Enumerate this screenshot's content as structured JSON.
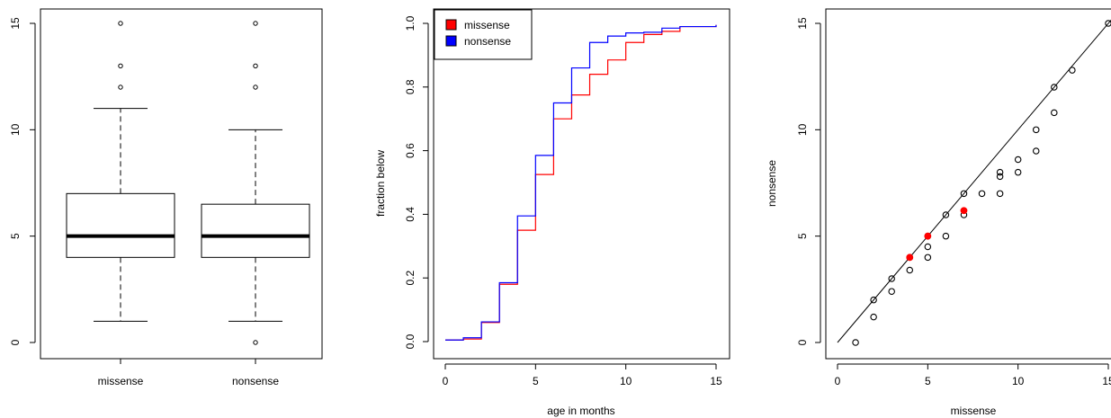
{
  "chart_data": [
    {
      "type": "box",
      "categories": [
        "missense",
        "nonsense"
      ],
      "ylim": [
        0,
        15
      ],
      "yticks": [
        "0",
        "5",
        "10",
        "15"
      ],
      "boxes": [
        {
          "name": "missense",
          "whisker_low": 1,
          "q1": 4,
          "median": 5,
          "q3": 7,
          "whisker_high": 11,
          "outliers": [
            12,
            13,
            15
          ]
        },
        {
          "name": "nonsense",
          "whisker_low": 1,
          "q1": 4,
          "median": 5,
          "q3": 6.5,
          "whisker_high": 10,
          "outliers": [
            0,
            12,
            13,
            15
          ]
        }
      ],
      "grid": false
    },
    {
      "type": "line",
      "step": true,
      "xlabel": "age in months",
      "ylabel": "fraction below",
      "xlim": [
        0,
        15
      ],
      "ylim": [
        0,
        1
      ],
      "xticks": [
        "0",
        "5",
        "10",
        "15"
      ],
      "yticks": [
        "0.0",
        "0.2",
        "0.4",
        "0.6",
        "0.8",
        "1.0"
      ],
      "legend": {
        "position": "top-left",
        "entries": [
          "missense",
          "nonsense"
        ]
      },
      "x": [
        0,
        1,
        2,
        3,
        4,
        5,
        6,
        7,
        8,
        9,
        10,
        11,
        12,
        13,
        14,
        15
      ],
      "series": [
        {
          "name": "missense",
          "color": "#ff0000",
          "values": [
            0.005,
            0.008,
            0.06,
            0.18,
            0.35,
            0.525,
            0.7,
            0.775,
            0.84,
            0.885,
            0.94,
            0.965,
            0.975,
            0.99,
            0.99,
            0.995
          ]
        },
        {
          "name": "nonsense",
          "color": "#0000ff",
          "values": [
            0.005,
            0.012,
            0.062,
            0.185,
            0.395,
            0.585,
            0.75,
            0.86,
            0.94,
            0.96,
            0.97,
            0.972,
            0.985,
            0.99,
            0.99,
            0.995
          ]
        }
      ],
      "grid": false
    },
    {
      "type": "scatter",
      "xlabel": "missense",
      "ylabel": "nonsense",
      "xlim": [
        0,
        15
      ],
      "ylim": [
        0,
        15
      ],
      "xticks": [
        "0",
        "5",
        "10",
        "15"
      ],
      "yticks": [
        "0",
        "5",
        "10",
        "15"
      ],
      "reference_line": "y = x",
      "points": [
        {
          "x": 1,
          "y": 0
        },
        {
          "x": 2,
          "y": 1.2
        },
        {
          "x": 2,
          "y": 2
        },
        {
          "x": 3,
          "y": 2.4
        },
        {
          "x": 3,
          "y": 3
        },
        {
          "x": 4,
          "y": 3.4
        },
        {
          "x": 4,
          "y": 4
        },
        {
          "x": 5,
          "y": 4
        },
        {
          "x": 5,
          "y": 4.5
        },
        {
          "x": 5,
          "y": 5
        },
        {
          "x": 6,
          "y": 5
        },
        {
          "x": 6,
          "y": 6
        },
        {
          "x": 7,
          "y": 6
        },
        {
          "x": 7,
          "y": 7
        },
        {
          "x": 8,
          "y": 7
        },
        {
          "x": 9,
          "y": 7
        },
        {
          "x": 9,
          "y": 7.8
        },
        {
          "x": 9,
          "y": 8
        },
        {
          "x": 10,
          "y": 8
        },
        {
          "x": 10,
          "y": 8.6
        },
        {
          "x": 11,
          "y": 9
        },
        {
          "x": 11,
          "y": 10
        },
        {
          "x": 12,
          "y": 10.8
        },
        {
          "x": 12,
          "y": 12
        },
        {
          "x": 13,
          "y": 12.8
        },
        {
          "x": 15,
          "y": 15
        }
      ],
      "highlighted_points": [
        {
          "x": 4,
          "y": 4,
          "color": "#ff0000"
        },
        {
          "x": 5,
          "y": 5,
          "color": "#ff0000"
        },
        {
          "x": 7,
          "y": 6.2,
          "color": "#ff0000"
        }
      ],
      "grid": false
    }
  ]
}
